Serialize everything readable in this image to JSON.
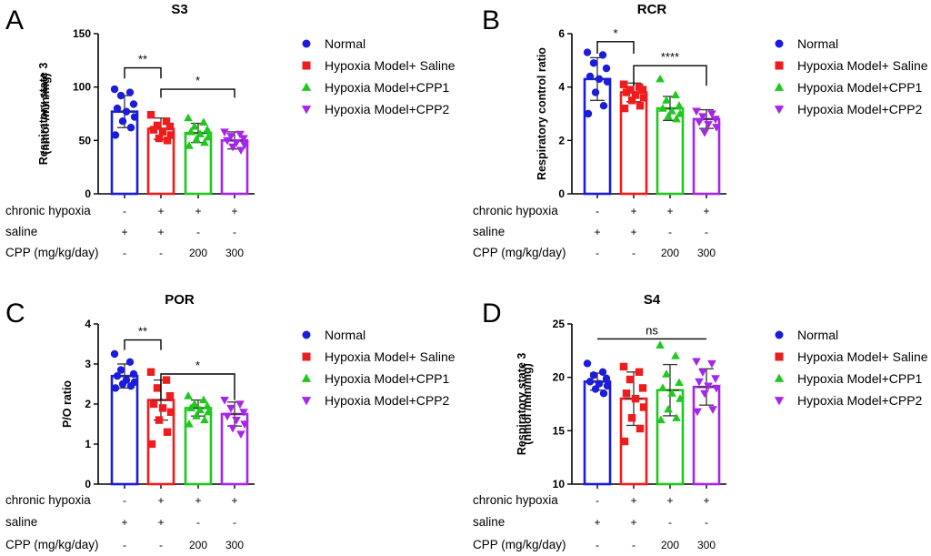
{
  "groups": [
    {
      "name": "Normal",
      "color": "#1c1cdc",
      "marker": "circle"
    },
    {
      "name": "Hypoxia Model+ Saline",
      "color": "#ee1c1c",
      "marker": "square"
    },
    {
      "name": "Hypoxia Model+CPP1",
      "color": "#1ec81e",
      "marker": "triangle-up"
    },
    {
      "name": "Hypoxia Model+CPP2",
      "color": "#a625ec",
      "marker": "triangle-down"
    }
  ],
  "condition_rows": [
    {
      "label": "chronic hypoxia",
      "values": [
        "-",
        "+",
        "+",
        "+"
      ]
    },
    {
      "label": "saline",
      "values": [
        "+",
        "+",
        "-",
        "-"
      ]
    },
    {
      "label": "CPP (mg/kg/day)",
      "values": [
        "-",
        "-",
        "200",
        "300"
      ]
    }
  ],
  "chart_data": [
    {
      "panel": "A",
      "type": "bar",
      "title": "S3",
      "ylabel": [
        "Respiratory state 3",
        "(nmol /min/mg)"
      ],
      "ylim": [
        0,
        150
      ],
      "yticks": [
        0,
        50,
        100,
        150
      ],
      "categories": [
        "Normal",
        "Hypoxia Model+ Saline",
        "Hypoxia Model+CPP1",
        "Hypoxia Model+CPP2"
      ],
      "means": [
        77,
        61,
        57,
        50
      ],
      "sd": [
        15,
        10,
        9,
        8
      ],
      "points": [
        [
          98,
          95,
          92,
          84,
          80,
          77,
          72,
          68,
          62,
          55
        ],
        [
          74,
          68,
          64,
          63,
          60,
          58,
          55,
          52,
          50
        ],
        [
          71,
          67,
          63,
          60,
          58,
          56,
          53,
          51,
          48,
          45
        ],
        [
          58,
          56,
          54,
          52,
          50,
          48,
          46,
          44,
          41
        ]
      ],
      "annotations": [
        {
          "text": "**",
          "from": 0,
          "to": 1,
          "y": 118,
          "drop": 10
        },
        {
          "text": "*",
          "from": 1,
          "to": 3,
          "y": 98,
          "drop": 8
        }
      ]
    },
    {
      "panel": "B",
      "type": "bar",
      "title": "RCR",
      "ylabel": [
        "Respiratory control ratio"
      ],
      "ylim": [
        0,
        6
      ],
      "yticks": [
        0,
        2,
        4,
        6
      ],
      "categories": [
        "Normal",
        "Hypoxia Model+ Saline",
        "Hypoxia Model+CPP1",
        "Hypoxia Model+CPP2"
      ],
      "means": [
        4.3,
        3.8,
        3.2,
        2.8
      ],
      "sd": [
        0.8,
        0.35,
        0.45,
        0.35
      ],
      "points": [
        [
          5.3,
          5.2,
          4.9,
          4.7,
          4.4,
          4.3,
          4.2,
          3.8,
          3.3,
          3.0
        ],
        [
          4.1,
          4.0,
          3.9,
          3.9,
          3.8,
          3.7,
          3.6,
          3.5,
          3.3,
          3.2
        ],
        [
          4.3,
          3.7,
          3.5,
          3.3,
          3.2,
          3.1,
          3.0,
          2.9,
          2.8
        ],
        [
          3.1,
          3.0,
          2.9,
          2.8,
          2.7,
          2.6,
          2.5,
          2.3
        ]
      ],
      "annotations": [
        {
          "text": "*",
          "from": 0,
          "to": 1,
          "y": 5.7,
          "drop": 0.45
        },
        {
          "text": "****",
          "from": 1,
          "to": 3,
          "y": 4.8,
          "drop": 0.75
        }
      ]
    },
    {
      "panel": "C",
      "type": "bar",
      "title": "POR",
      "ylabel": [
        "P/O ratio"
      ],
      "ylim": [
        0,
        4
      ],
      "yticks": [
        0,
        1,
        2,
        3,
        4
      ],
      "categories": [
        "Normal",
        "Hypoxia Model+ Saline",
        "Hypoxia Model+CPP1",
        "Hypoxia Model+CPP2"
      ],
      "means": [
        2.7,
        2.1,
        1.9,
        1.75
      ],
      "sd": [
        0.3,
        0.5,
        0.2,
        0.3
      ],
      "points": [
        [
          3.25,
          3.05,
          2.85,
          2.75,
          2.7,
          2.6,
          2.55,
          2.5,
          2.45,
          2.4
        ],
        [
          2.8,
          2.6,
          2.4,
          2.2,
          2.0,
          1.9,
          1.8,
          1.6,
          1.3,
          1.0
        ],
        [
          2.2,
          2.1,
          2.0,
          1.95,
          1.9,
          1.85,
          1.8,
          1.7,
          1.6,
          1.5
        ],
        [
          2.1,
          2.0,
          1.9,
          1.8,
          1.7,
          1.6,
          1.5,
          1.4,
          1.25
        ]
      ],
      "annotations": [
        {
          "text": "**",
          "from": 0,
          "to": 1,
          "y": 3.6,
          "drop": 0.25
        },
        {
          "text": "*",
          "from": 1,
          "to": 3,
          "y": 2.75,
          "drop": 0.65
        }
      ]
    },
    {
      "panel": "D",
      "type": "bar",
      "title": "S4",
      "ylabel": [
        "Respiratory state 3",
        "(nmol /min/mg)"
      ],
      "ylim": [
        10,
        25
      ],
      "yticks": [
        10,
        15,
        20,
        25
      ],
      "categories": [
        "Normal",
        "Hypoxia Model+ Saline",
        "Hypoxia Model+CPP1",
        "Hypoxia Model+CPP2"
      ],
      "means": [
        19.6,
        18.0,
        18.8,
        19.1
      ],
      "sd": [
        0.8,
        2.5,
        2.4,
        1.7
      ],
      "points": [
        [
          21.3,
          20.5,
          20.2,
          19.9,
          19.6,
          19.4,
          19.2,
          18.9,
          18.5
        ],
        [
          21.0,
          20.5,
          19.8,
          19.0,
          18.5,
          18.0,
          17.2,
          16.2,
          15.2,
          14.0
        ],
        [
          23.0,
          22.0,
          20.3,
          19.5,
          19.0,
          18.5,
          18.0,
          17.0,
          16.2,
          16.0
        ],
        [
          21.5,
          21.3,
          20.5,
          19.9,
          19.6,
          19.2,
          19.0,
          18.5,
          17.0,
          16.8
        ]
      ],
      "annotations": [
        {
          "text": "ns",
          "from": 0,
          "to": 3,
          "y": 23.6,
          "drop": 0
        }
      ]
    }
  ]
}
